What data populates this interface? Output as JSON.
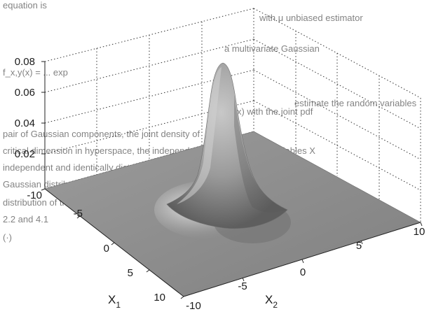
{
  "chart_data": {
    "type": "surface",
    "title": "",
    "xlabel_main": "X",
    "xlabel_sub": "1",
    "ylabel_main": "X",
    "ylabel_sub": "2",
    "zlabel": "",
    "x_ticks": [
      "-10",
      "-5",
      "0",
      "5",
      "10"
    ],
    "y_ticks": [
      "-10",
      "-5",
      "0",
      "5",
      "10"
    ],
    "z_ticks": [
      "0.02",
      "0.04",
      "0.06",
      "0.08"
    ],
    "x_range": [
      -10,
      10
    ],
    "y_range": [
      -10,
      10
    ],
    "z_range": [
      0,
      0.09
    ],
    "peak": {
      "x1": 0,
      "x2": 0,
      "z": 0.08
    },
    "grid": true,
    "surface_color": "#8c8c8c",
    "background_text": [
      "equation is",
      "with μ unbiased estimator",
      "f_x,y(x) = ... exp",
      "estimate the random variables",
      "a multivariate Gaussian",
      "f(x) with the joint pdf",
      "pair of Gaussian components, the joint density of",
      "critical dimension in hyperspace, the independently of the random variables X",
      "independent and identically distributed the variables has a",
      "Gaussian distribution with mean vector, the random variable",
      "distribution of the normal χ² distribution",
      "2.2 and 4.1",
      "(·)"
    ]
  }
}
